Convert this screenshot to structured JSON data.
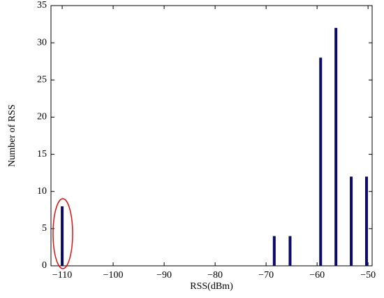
{
  "chart_data": {
    "type": "bar",
    "x_label": "RSS(dBm)",
    "y_label": "Number of RSS",
    "x": [
      -110,
      -68.4,
      -65.3,
      -59.3,
      -56.3,
      -53.3,
      -50.3
    ],
    "values": [
      8,
      4,
      4,
      28,
      32,
      12,
      12
    ],
    "color": "#0a0a6e",
    "xlim": [
      -112.2,
      -49.2
    ],
    "xticks": [
      {
        "value": -110,
        "label": "−110"
      },
      {
        "value": -100,
        "label": "−100"
      },
      {
        "value": -90,
        "label": "−90"
      },
      {
        "value": -80,
        "label": "−80"
      },
      {
        "value": -70,
        "label": "−70"
      },
      {
        "value": -60,
        "label": "−60"
      },
      {
        "value": -50,
        "label": "−50"
      }
    ],
    "ylim": [
      0,
      35
    ],
    "yticks": [
      0,
      5,
      10,
      15,
      20,
      25,
      30,
      35
    ]
  }
}
